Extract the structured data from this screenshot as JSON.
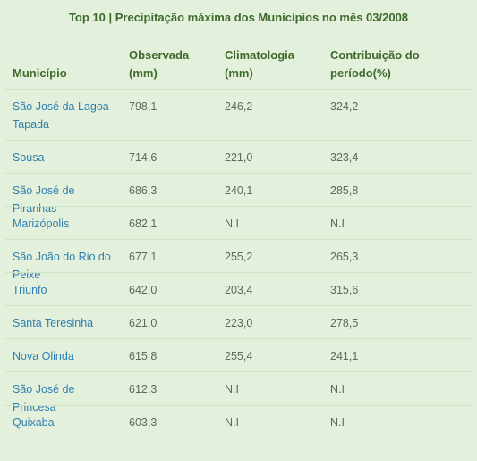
{
  "title": "Top 10 | Precipitação máxima dos Municípios no mês 03/2008",
  "table": {
    "headers": [
      "Município",
      "Observada (mm)",
      "Climatologia (mm)",
      "Contribuição do período(%)"
    ],
    "rows": [
      {
        "municipio": "São José da Lagoa Tapada",
        "observada": "798,1",
        "climatologia": "246,2",
        "contribuicao": "324,2"
      },
      {
        "municipio": "Sousa",
        "observada": "714,6",
        "climatologia": "221,0",
        "contribuicao": "323,4"
      },
      {
        "municipio": "São José de Piranhas",
        "observada": "686,3",
        "climatologia": "240,1",
        "contribuicao": "285,8"
      },
      {
        "municipio": "Marizópolis",
        "observada": "682,1",
        "climatologia": "N.I",
        "contribuicao": "N.I"
      },
      {
        "municipio": "São João do Rio do Peixe",
        "observada": "677,1",
        "climatologia": "255,2",
        "contribuicao": "265,3"
      },
      {
        "municipio": "Triunfo",
        "observada": "642,0",
        "climatologia": "203,4",
        "contribuicao": "315,6"
      },
      {
        "municipio": "Santa Teresinha",
        "observada": "621,0",
        "climatologia": "223,0",
        "contribuicao": "278,5"
      },
      {
        "municipio": "Nova Olinda",
        "observada": "615,8",
        "climatologia": "255,4",
        "contribuicao": "241,1"
      },
      {
        "municipio": "São José de Princesa",
        "observada": "612,3",
        "climatologia": "N.I",
        "contribuicao": "N.I"
      },
      {
        "municipio": "Quixaba",
        "observada": "603,3",
        "climatologia": "N.I",
        "contribuicao": "N.I"
      }
    ]
  }
}
